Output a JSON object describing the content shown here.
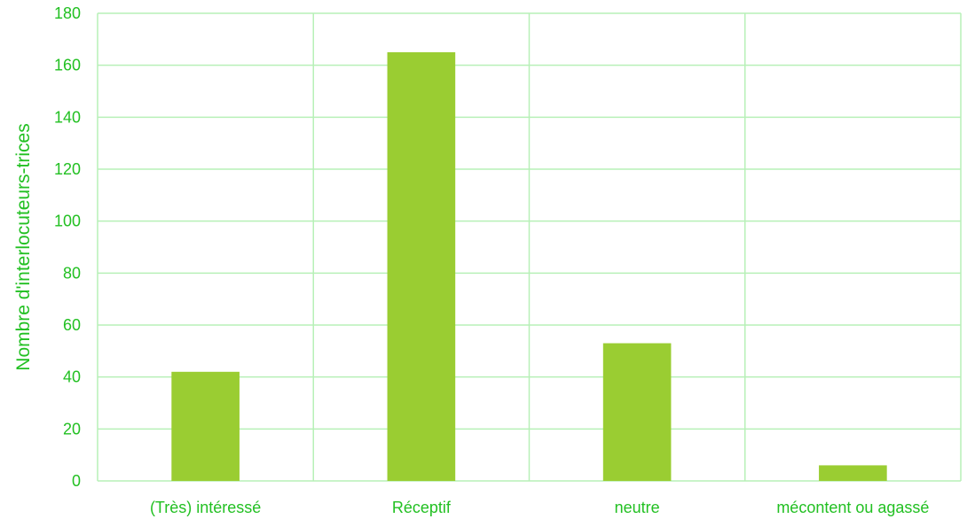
{
  "chart_data": {
    "type": "bar",
    "title": "",
    "xlabel": "",
    "ylabel": "Nombre d'interlocuteurs-trices",
    "categories": [
      "(Très) intéressé",
      "Réceptif",
      "neutre",
      "mécontent ou agassé"
    ],
    "values": [
      42,
      165,
      53,
      6
    ],
    "ylim": [
      0,
      180
    ],
    "yticks": [
      0,
      20,
      40,
      60,
      80,
      100,
      120,
      140,
      160,
      180
    ],
    "grid": true,
    "legend": "none"
  },
  "colors": {
    "bar": "#9acd32",
    "text": "#22c022",
    "grid": "#b7f0b7"
  }
}
